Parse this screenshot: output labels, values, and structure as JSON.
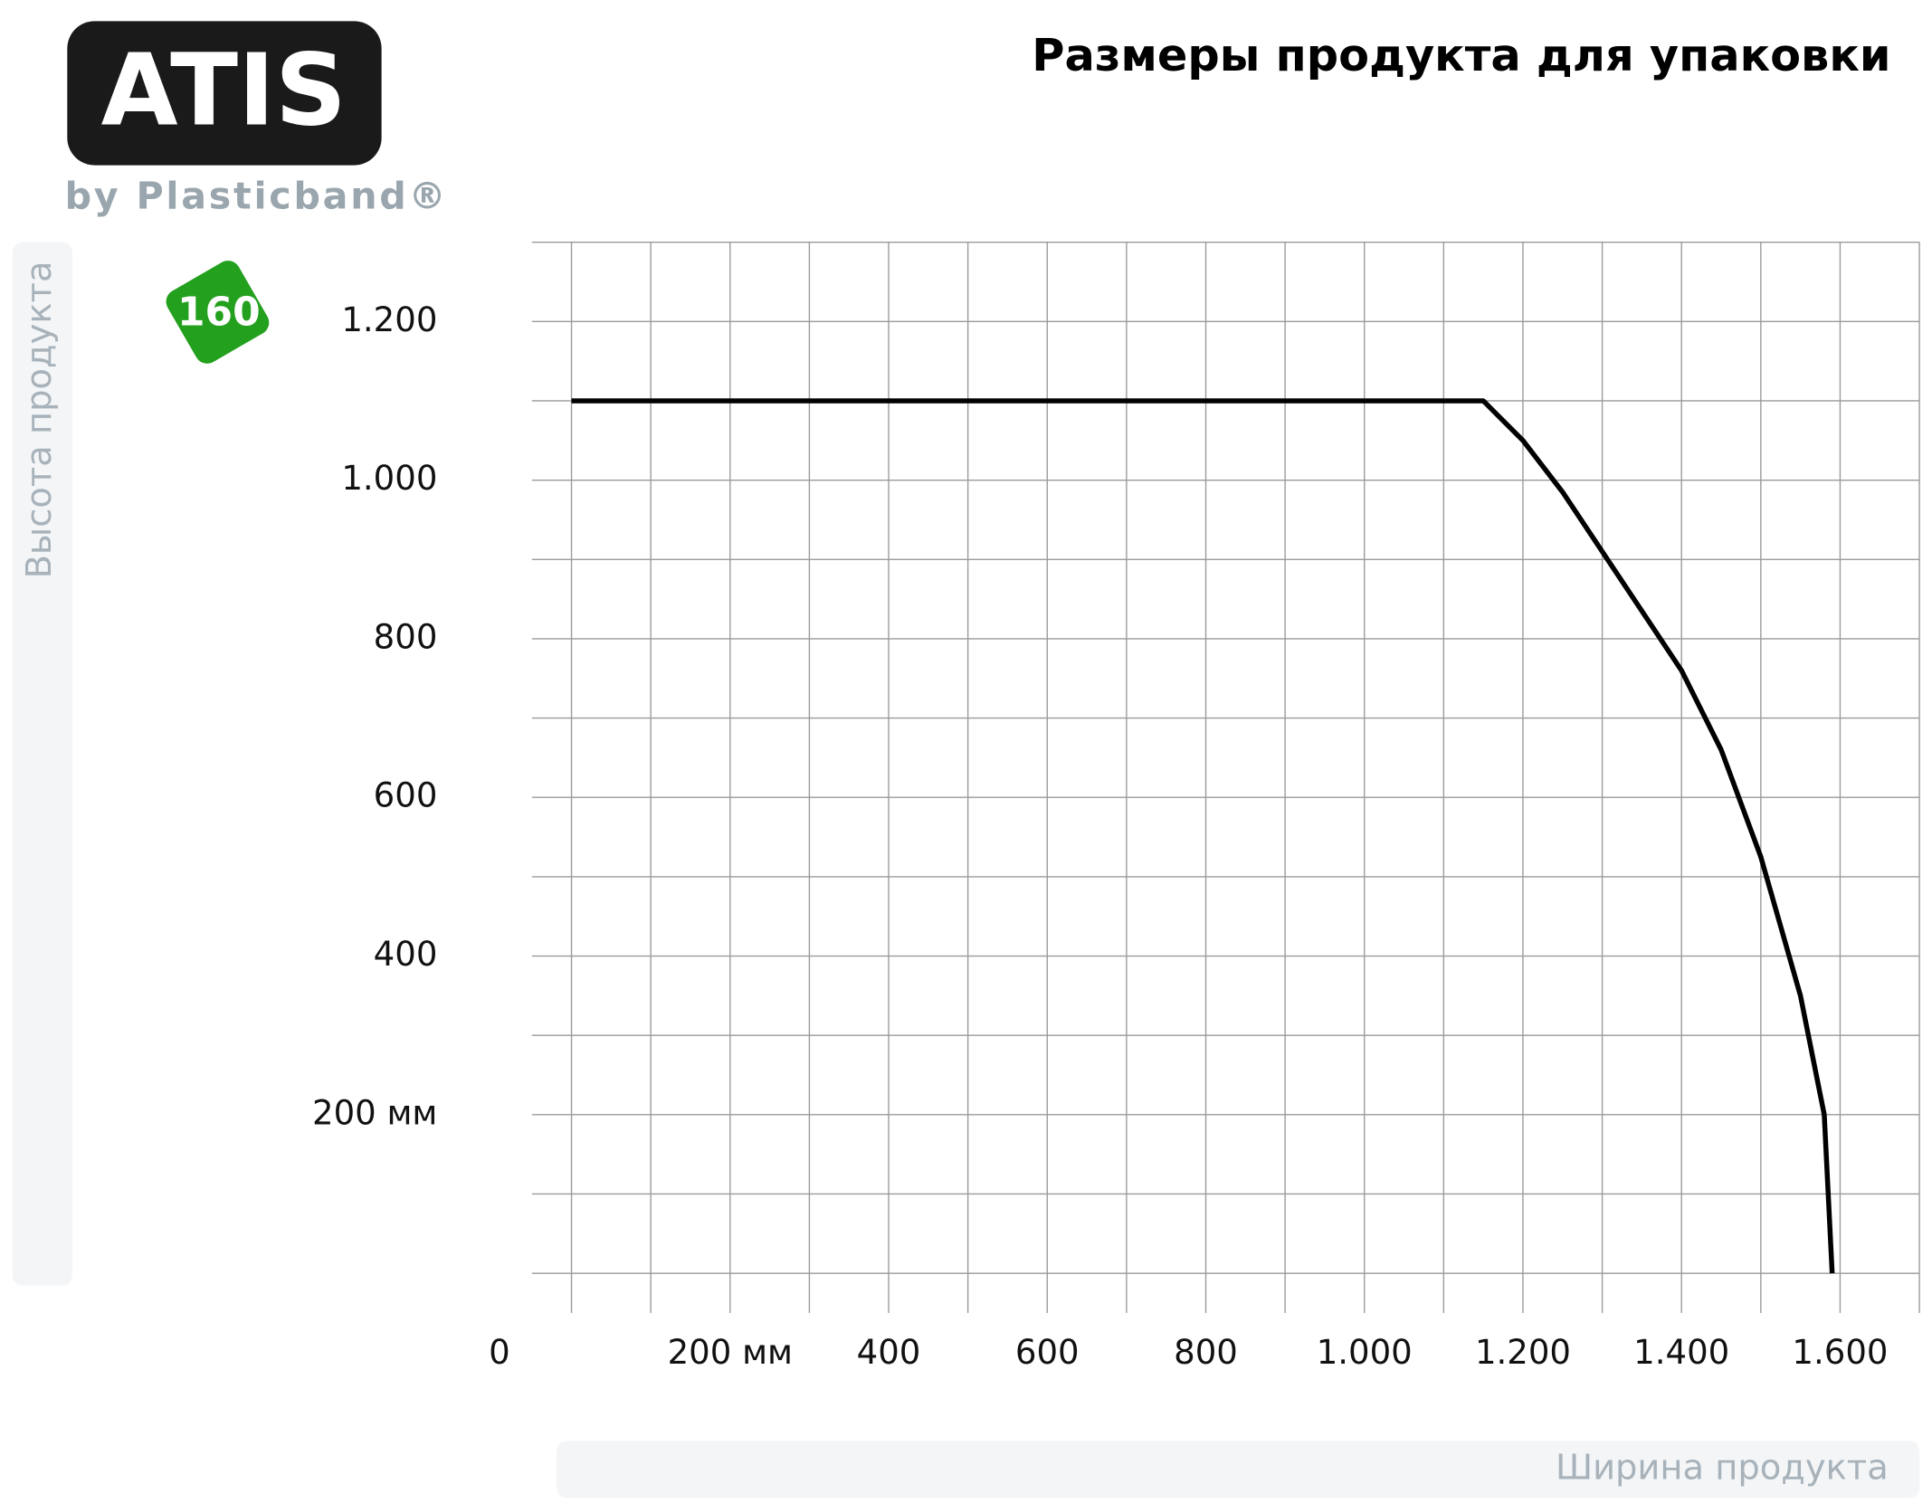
{
  "logo": {
    "brand": "ATIS",
    "tagline": "by Plasticband®"
  },
  "badge": "160",
  "chart_data": {
    "type": "line",
    "title": "Размеры продукта для упаковки",
    "y_label": "Высота продукта",
    "x_label": "Ширина продукта",
    "x": [
      0,
      1150,
      1200,
      1250,
      1300,
      1350,
      1400,
      1450,
      1500,
      1550,
      1580,
      1590
    ],
    "values": [
      1100,
      1100,
      1050,
      985,
      910,
      835,
      760,
      660,
      525,
      350,
      200,
      0
    ],
    "color": "#000000",
    "xlim": [
      -50,
      1700
    ],
    "ylim": [
      -50,
      1300
    ],
    "xticks": [
      0,
      {
        "value": 200,
        "label": "200 мм"
      },
      400,
      600,
      800,
      {
        "value": 1000,
        "label": "1.000"
      },
      {
        "value": 1200,
        "label": "1.200"
      },
      {
        "value": 1400,
        "label": "1.400"
      },
      {
        "value": 1600,
        "label": "1.600"
      }
    ],
    "yticks": [
      {
        "value": 200,
        "label": "200 мм"
      },
      400,
      600,
      800,
      {
        "value": 1000,
        "label": "1.000"
      },
      {
        "value": 1200,
        "label": "1.200"
      }
    ],
    "xgrid": [
      0,
      100,
      200,
      300,
      400,
      500,
      600,
      700,
      800,
      900,
      1000,
      1100,
      1200,
      1300,
      1400,
      1500,
      1600,
      1700
    ],
    "ygrid": [
      0,
      100,
      200,
      300,
      400,
      500,
      600,
      700,
      800,
      900,
      1000,
      1100,
      1200,
      1300
    ],
    "grid": true
  }
}
